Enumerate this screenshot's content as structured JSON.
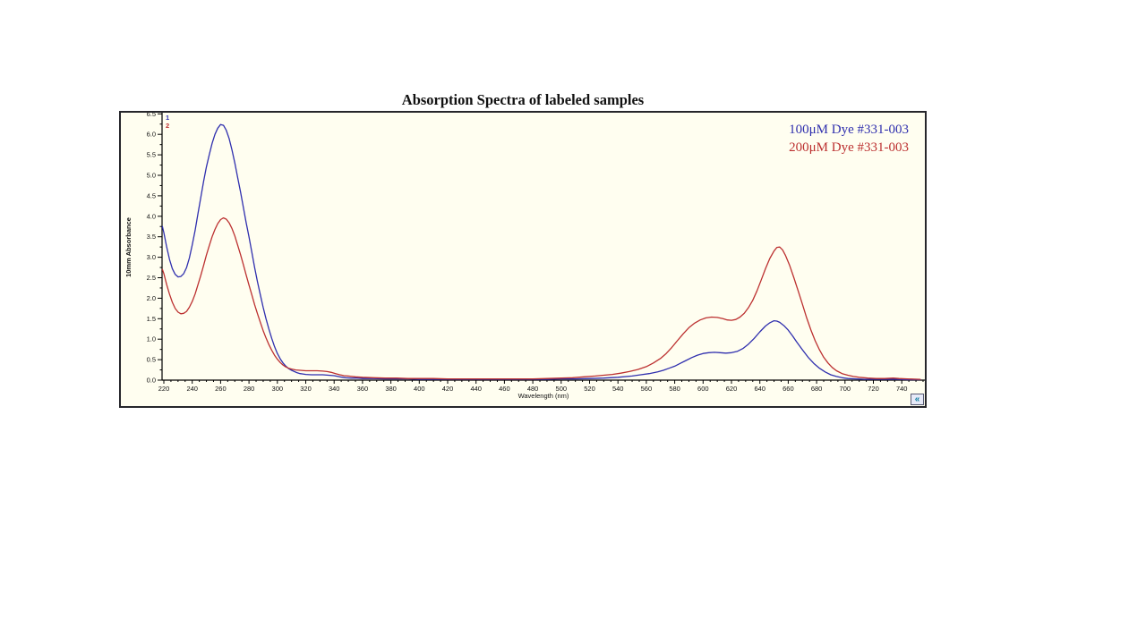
{
  "page": {
    "title": "Absorption Spectra of labeled samples"
  },
  "controls": {
    "collapse_label": "«"
  },
  "colors": {
    "plot_background": "#fffef0",
    "frame_border": "#26262b",
    "axis": "#000000",
    "tick_label": "#111111",
    "collapse_glyph": "#0a7e9e"
  },
  "chart_data": {
    "type": "line",
    "title": "Absorption Spectra of labeled samples",
    "xlabel": "Wavelength (nm)",
    "ylabel": "10mm Absorbance",
    "xlim": [
      219,
      755
    ],
    "ylim": [
      0,
      6.53
    ],
    "x_major_tick_start": 220,
    "x_major_tick_step": 20,
    "x_major_tick_end": 740,
    "x_minor_tick_step": 5,
    "y_major_tick_step": 0.5,
    "y_minor_tick_step": 0.25,
    "y_max_tick": 6.5,
    "grid": false,
    "legend_position": "top-right",
    "series": [
      {
        "name": "100μM Dye #331-003",
        "trace_number": "1",
        "color": "#2f2fae",
        "points": [
          [
            219,
            3.75
          ],
          [
            220,
            3.6
          ],
          [
            222,
            3.25
          ],
          [
            224,
            2.95
          ],
          [
            226,
            2.72
          ],
          [
            228,
            2.58
          ],
          [
            230,
            2.52
          ],
          [
            232,
            2.53
          ],
          [
            234,
            2.6
          ],
          [
            236,
            2.75
          ],
          [
            238,
            2.98
          ],
          [
            240,
            3.3
          ],
          [
            242,
            3.65
          ],
          [
            244,
            4.05
          ],
          [
            246,
            4.45
          ],
          [
            248,
            4.85
          ],
          [
            250,
            5.2
          ],
          [
            252,
            5.5
          ],
          [
            254,
            5.78
          ],
          [
            256,
            6.0
          ],
          [
            258,
            6.15
          ],
          [
            260,
            6.24
          ],
          [
            262,
            6.22
          ],
          [
            264,
            6.1
          ],
          [
            266,
            5.9
          ],
          [
            268,
            5.62
          ],
          [
            270,
            5.3
          ],
          [
            272,
            4.95
          ],
          [
            274,
            4.6
          ],
          [
            276,
            4.22
          ],
          [
            278,
            3.85
          ],
          [
            280,
            3.5
          ],
          [
            282,
            3.12
          ],
          [
            284,
            2.75
          ],
          [
            286,
            2.4
          ],
          [
            288,
            2.08
          ],
          [
            290,
            1.78
          ],
          [
            292,
            1.5
          ],
          [
            294,
            1.25
          ],
          [
            296,
            1.02
          ],
          [
            298,
            0.82
          ],
          [
            300,
            0.65
          ],
          [
            302,
            0.52
          ],
          [
            304,
            0.42
          ],
          [
            306,
            0.34
          ],
          [
            308,
            0.28
          ],
          [
            310,
            0.24
          ],
          [
            312,
            0.21
          ],
          [
            314,
            0.18
          ],
          [
            316,
            0.16
          ],
          [
            318,
            0.15
          ],
          [
            320,
            0.14
          ],
          [
            324,
            0.13
          ],
          [
            328,
            0.13
          ],
          [
            332,
            0.13
          ],
          [
            336,
            0.12
          ],
          [
            340,
            0.11
          ],
          [
            344,
            0.08
          ],
          [
            348,
            0.06
          ],
          [
            352,
            0.05
          ],
          [
            356,
            0.05
          ],
          [
            360,
            0.04
          ],
          [
            368,
            0.04
          ],
          [
            376,
            0.03
          ],
          [
            384,
            0.03
          ],
          [
            392,
            0.03
          ],
          [
            400,
            0.02
          ],
          [
            410,
            0.02
          ],
          [
            420,
            0.02
          ],
          [
            430,
            0.02
          ],
          [
            440,
            0.02
          ],
          [
            450,
            0.02
          ],
          [
            460,
            0.02
          ],
          [
            470,
            0.02
          ],
          [
            480,
            0.02
          ],
          [
            490,
            0.02
          ],
          [
            500,
            0.03
          ],
          [
            510,
            0.03
          ],
          [
            520,
            0.04
          ],
          [
            530,
            0.05
          ],
          [
            540,
            0.07
          ],
          [
            550,
            0.1
          ],
          [
            556,
            0.13
          ],
          [
            562,
            0.16
          ],
          [
            568,
            0.2
          ],
          [
            572,
            0.24
          ],
          [
            576,
            0.29
          ],
          [
            580,
            0.34
          ],
          [
            584,
            0.41
          ],
          [
            588,
            0.48
          ],
          [
            592,
            0.55
          ],
          [
            596,
            0.61
          ],
          [
            600,
            0.65
          ],
          [
            604,
            0.67
          ],
          [
            608,
            0.68
          ],
          [
            612,
            0.67
          ],
          [
            616,
            0.66
          ],
          [
            620,
            0.67
          ],
          [
            624,
            0.7
          ],
          [
            628,
            0.77
          ],
          [
            632,
            0.88
          ],
          [
            636,
            1.02
          ],
          [
            640,
            1.18
          ],
          [
            644,
            1.32
          ],
          [
            647,
            1.4
          ],
          [
            650,
            1.45
          ],
          [
            652,
            1.44
          ],
          [
            654,
            1.41
          ],
          [
            657,
            1.33
          ],
          [
            660,
            1.22
          ],
          [
            663,
            1.08
          ],
          [
            666,
            0.93
          ],
          [
            670,
            0.74
          ],
          [
            674,
            0.56
          ],
          [
            678,
            0.41
          ],
          [
            682,
            0.29
          ],
          [
            686,
            0.2
          ],
          [
            690,
            0.13
          ],
          [
            694,
            0.09
          ],
          [
            698,
            0.06
          ],
          [
            702,
            0.04
          ],
          [
            708,
            0.03
          ],
          [
            714,
            0.02
          ],
          [
            720,
            0.02
          ],
          [
            728,
            0.02
          ],
          [
            736,
            0.02
          ],
          [
            744,
            0.01
          ],
          [
            753,
            0.01
          ]
        ]
      },
      {
        "name": "200μM Dye #331-003",
        "trace_number": "2",
        "color": "#bc3030",
        "points": [
          [
            219,
            2.7
          ],
          [
            220,
            2.6
          ],
          [
            222,
            2.33
          ],
          [
            224,
            2.1
          ],
          [
            226,
            1.9
          ],
          [
            228,
            1.75
          ],
          [
            230,
            1.66
          ],
          [
            232,
            1.62
          ],
          [
            234,
            1.63
          ],
          [
            236,
            1.68
          ],
          [
            238,
            1.78
          ],
          [
            240,
            1.92
          ],
          [
            242,
            2.1
          ],
          [
            244,
            2.32
          ],
          [
            246,
            2.55
          ],
          [
            248,
            2.8
          ],
          [
            250,
            3.05
          ],
          [
            252,
            3.28
          ],
          [
            254,
            3.5
          ],
          [
            256,
            3.68
          ],
          [
            258,
            3.82
          ],
          [
            260,
            3.92
          ],
          [
            262,
            3.96
          ],
          [
            264,
            3.93
          ],
          [
            266,
            3.84
          ],
          [
            268,
            3.7
          ],
          [
            270,
            3.52
          ],
          [
            272,
            3.3
          ],
          [
            274,
            3.07
          ],
          [
            276,
            2.82
          ],
          [
            278,
            2.57
          ],
          [
            280,
            2.32
          ],
          [
            282,
            2.08
          ],
          [
            284,
            1.84
          ],
          [
            286,
            1.62
          ],
          [
            288,
            1.41
          ],
          [
            290,
            1.21
          ],
          [
            292,
            1.03
          ],
          [
            294,
            0.87
          ],
          [
            296,
            0.73
          ],
          [
            298,
            0.61
          ],
          [
            300,
            0.51
          ],
          [
            302,
            0.43
          ],
          [
            304,
            0.37
          ],
          [
            306,
            0.32
          ],
          [
            308,
            0.29
          ],
          [
            310,
            0.27
          ],
          [
            313,
            0.25
          ],
          [
            316,
            0.24
          ],
          [
            320,
            0.23
          ],
          [
            324,
            0.23
          ],
          [
            328,
            0.23
          ],
          [
            332,
            0.22
          ],
          [
            335,
            0.21
          ],
          [
            338,
            0.19
          ],
          [
            341,
            0.16
          ],
          [
            344,
            0.13
          ],
          [
            347,
            0.11
          ],
          [
            350,
            0.1
          ],
          [
            355,
            0.08
          ],
          [
            360,
            0.07
          ],
          [
            368,
            0.06
          ],
          [
            376,
            0.05
          ],
          [
            384,
            0.05
          ],
          [
            392,
            0.04
          ],
          [
            400,
            0.04
          ],
          [
            410,
            0.04
          ],
          [
            420,
            0.03
          ],
          [
            430,
            0.03
          ],
          [
            440,
            0.03
          ],
          [
            450,
            0.03
          ],
          [
            460,
            0.03
          ],
          [
            470,
            0.03
          ],
          [
            480,
            0.03
          ],
          [
            490,
            0.04
          ],
          [
            500,
            0.05
          ],
          [
            508,
            0.06
          ],
          [
            516,
            0.08
          ],
          [
            524,
            0.1
          ],
          [
            530,
            0.12
          ],
          [
            536,
            0.14
          ],
          [
            542,
            0.17
          ],
          [
            548,
            0.21
          ],
          [
            554,
            0.26
          ],
          [
            560,
            0.33
          ],
          [
            565,
            0.42
          ],
          [
            570,
            0.53
          ],
          [
            574,
            0.65
          ],
          [
            578,
            0.8
          ],
          [
            582,
            0.97
          ],
          [
            586,
            1.13
          ],
          [
            590,
            1.28
          ],
          [
            594,
            1.39
          ],
          [
            598,
            1.47
          ],
          [
            602,
            1.52
          ],
          [
            606,
            1.54
          ],
          [
            610,
            1.53
          ],
          [
            614,
            1.5
          ],
          [
            617,
            1.47
          ],
          [
            620,
            1.46
          ],
          [
            623,
            1.48
          ],
          [
            626,
            1.54
          ],
          [
            629,
            1.63
          ],
          [
            632,
            1.77
          ],
          [
            635,
            1.95
          ],
          [
            638,
            2.18
          ],
          [
            641,
            2.45
          ],
          [
            644,
            2.72
          ],
          [
            647,
            2.97
          ],
          [
            650,
            3.15
          ],
          [
            652,
            3.24
          ],
          [
            654,
            3.25
          ],
          [
            656,
            3.18
          ],
          [
            658,
            3.05
          ],
          [
            661,
            2.8
          ],
          [
            664,
            2.5
          ],
          [
            667,
            2.18
          ],
          [
            670,
            1.85
          ],
          [
            673,
            1.52
          ],
          [
            676,
            1.22
          ],
          [
            679,
            0.96
          ],
          [
            682,
            0.74
          ],
          [
            685,
            0.56
          ],
          [
            688,
            0.42
          ],
          [
            691,
            0.31
          ],
          [
            694,
            0.23
          ],
          [
            698,
            0.16
          ],
          [
            702,
            0.12
          ],
          [
            706,
            0.09
          ],
          [
            710,
            0.07
          ],
          [
            716,
            0.05
          ],
          [
            722,
            0.04
          ],
          [
            728,
            0.04
          ],
          [
            734,
            0.05
          ],
          [
            738,
            0.04
          ],
          [
            744,
            0.03
          ],
          [
            753,
            0.02
          ]
        ]
      }
    ]
  }
}
